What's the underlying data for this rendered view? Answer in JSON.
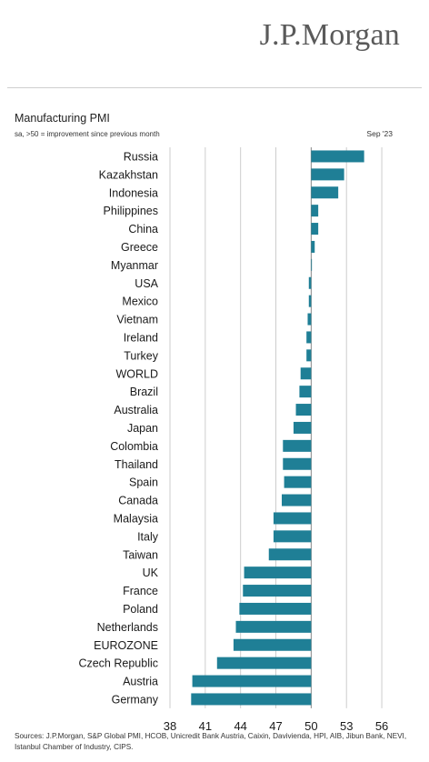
{
  "header": {
    "brand": "J.P.Morgan",
    "title": "Manufacturing PMI",
    "subtitle": "sa, >50 = improvement since previous month",
    "date": "Sep '23"
  },
  "footer": {
    "sources": "Sources: J.P.Morgan, S&P Global PMI, HCOB, Unicredit Bank Austria, Caixin, Davivienda, HPI, AIB, Jibun Bank, NEVI, Istanbul Chamber of Industry, CIPS."
  },
  "colors": {
    "bar": "#1f7f96",
    "gridline": "#cccccc",
    "baseline": "#888888"
  },
  "chart_data": {
    "type": "bar",
    "orientation": "horizontal",
    "title": "Manufacturing PMI",
    "subtitle": "sa, >50 = improvement since previous month",
    "base": 50,
    "xlim": [
      38,
      57
    ],
    "xticks": [
      38,
      41,
      44,
      47,
      50,
      53,
      56
    ],
    "grid": true,
    "categories": [
      "Russia",
      "Kazakhstan",
      "Indonesia",
      "Philippines",
      "China",
      "Greece",
      "Myanmar",
      "USA",
      "Mexico",
      "Vietnam",
      "Ireland",
      "Turkey",
      "WORLD",
      "Brazil",
      "Australia",
      "Japan",
      "Colombia",
      "Thailand",
      "Spain",
      "Canada",
      "Malaysia",
      "Italy",
      "Taiwan",
      "UK",
      "France",
      "Poland",
      "Netherlands",
      "EUROZONE",
      "Czech Republic",
      "Austria",
      "Germany"
    ],
    "values": [
      54.5,
      52.8,
      52.3,
      50.6,
      50.6,
      50.3,
      50.0,
      49.8,
      49.8,
      49.7,
      49.6,
      49.6,
      49.1,
      49.0,
      48.7,
      48.5,
      47.6,
      47.6,
      47.7,
      47.5,
      46.8,
      46.8,
      46.4,
      44.3,
      44.2,
      43.9,
      43.6,
      43.4,
      42.0,
      39.9,
      39.8
    ]
  }
}
